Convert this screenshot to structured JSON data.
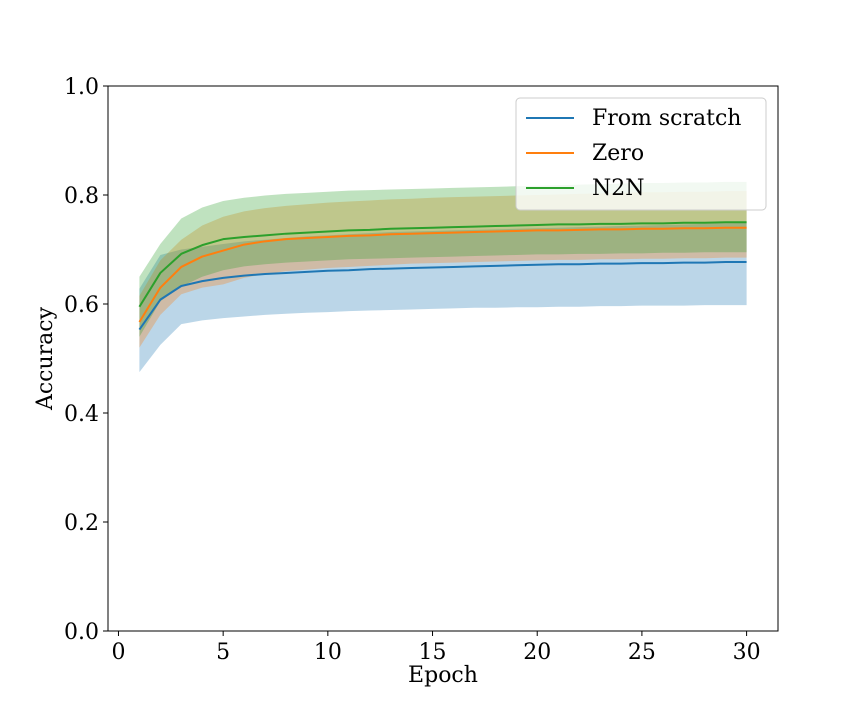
{
  "chart_data": {
    "type": "line",
    "xlabel": "Epoch",
    "ylabel": "Accuracy",
    "xlim": [
      -0.5,
      31.5
    ],
    "ylim": [
      0.0,
      1.0
    ],
    "xticks": [
      0,
      5,
      10,
      15,
      20,
      25,
      30
    ],
    "yticks": [
      0.0,
      0.2,
      0.4,
      0.6,
      0.8,
      1.0
    ],
    "xtick_labels": [
      "0",
      "5",
      "10",
      "15",
      "20",
      "25",
      "30"
    ],
    "ytick_labels": [
      "0.0",
      "0.2",
      "0.4",
      "0.6",
      "0.8",
      "1.0"
    ],
    "grid": false,
    "legend_position": "top-right",
    "x": [
      1,
      2,
      3,
      4,
      5,
      6,
      7,
      8,
      9,
      10,
      11,
      12,
      13,
      14,
      15,
      16,
      17,
      18,
      19,
      20,
      21,
      22,
      23,
      24,
      25,
      26,
      27,
      28,
      29,
      30
    ],
    "series": [
      {
        "name": "From scratch",
        "color": "#1f77b4",
        "band_opacity": 0.3,
        "values": [
          0.553,
          0.608,
          0.633,
          0.642,
          0.648,
          0.652,
          0.655,
          0.657,
          0.659,
          0.661,
          0.662,
          0.664,
          0.665,
          0.666,
          0.667,
          0.668,
          0.669,
          0.67,
          0.671,
          0.672,
          0.673,
          0.673,
          0.674,
          0.674,
          0.675,
          0.675,
          0.676,
          0.676,
          0.677,
          0.677
        ],
        "lower": [
          0.475,
          0.525,
          0.563,
          0.57,
          0.574,
          0.577,
          0.58,
          0.582,
          0.584,
          0.585,
          0.587,
          0.588,
          0.589,
          0.59,
          0.591,
          0.592,
          0.593,
          0.593,
          0.594,
          0.594,
          0.595,
          0.595,
          0.596,
          0.596,
          0.597,
          0.597,
          0.597,
          0.598,
          0.598,
          0.598
        ],
        "upper": [
          0.628,
          0.69,
          0.7,
          0.705,
          0.71,
          0.715,
          0.718,
          0.721,
          0.724,
          0.726,
          0.728,
          0.73,
          0.732,
          0.733,
          0.734,
          0.735,
          0.736,
          0.737,
          0.738,
          0.739,
          0.74,
          0.741,
          0.742,
          0.743,
          0.744,
          0.745,
          0.746,
          0.747,
          0.748,
          0.749
        ]
      },
      {
        "name": "Zero",
        "color": "#ff7f0e",
        "band_opacity": 0.3,
        "values": [
          0.567,
          0.63,
          0.668,
          0.687,
          0.698,
          0.709,
          0.715,
          0.719,
          0.721,
          0.723,
          0.725,
          0.726,
          0.728,
          0.729,
          0.73,
          0.731,
          0.732,
          0.733,
          0.734,
          0.735,
          0.735,
          0.736,
          0.737,
          0.737,
          0.738,
          0.738,
          0.739,
          0.739,
          0.74,
          0.74
        ],
        "lower": [
          0.52,
          0.58,
          0.618,
          0.63,
          0.636,
          0.648,
          0.655,
          0.66,
          0.663,
          0.666,
          0.668,
          0.67,
          0.672,
          0.674,
          0.675,
          0.676,
          0.677,
          0.678,
          0.679,
          0.68,
          0.681,
          0.681,
          0.682,
          0.682,
          0.683,
          0.683,
          0.684,
          0.684,
          0.685,
          0.685
        ],
        "upper": [
          0.615,
          0.68,
          0.718,
          0.744,
          0.76,
          0.77,
          0.776,
          0.78,
          0.783,
          0.786,
          0.788,
          0.79,
          0.792,
          0.793,
          0.795,
          0.796,
          0.797,
          0.798,
          0.799,
          0.8,
          0.801,
          0.802,
          0.803,
          0.804,
          0.805,
          0.805,
          0.806,
          0.806,
          0.807,
          0.807
        ]
      },
      {
        "name": "N2N",
        "color": "#2ca02c",
        "band_opacity": 0.3,
        "values": [
          0.595,
          0.657,
          0.692,
          0.708,
          0.719,
          0.723,
          0.726,
          0.729,
          0.731,
          0.733,
          0.735,
          0.736,
          0.738,
          0.739,
          0.74,
          0.741,
          0.742,
          0.743,
          0.744,
          0.745,
          0.746,
          0.746,
          0.747,
          0.747,
          0.748,
          0.748,
          0.749,
          0.749,
          0.75,
          0.75
        ],
        "lower": [
          0.54,
          0.605,
          0.632,
          0.65,
          0.662,
          0.669,
          0.673,
          0.676,
          0.678,
          0.68,
          0.682,
          0.683,
          0.684,
          0.685,
          0.686,
          0.687,
          0.688,
          0.689,
          0.69,
          0.691,
          0.691,
          0.692,
          0.692,
          0.693,
          0.693,
          0.694,
          0.694,
          0.695,
          0.695,
          0.695
        ],
        "upper": [
          0.65,
          0.71,
          0.757,
          0.777,
          0.789,
          0.795,
          0.799,
          0.802,
          0.804,
          0.806,
          0.808,
          0.809,
          0.81,
          0.811,
          0.812,
          0.813,
          0.814,
          0.815,
          0.816,
          0.817,
          0.818,
          0.819,
          0.82,
          0.821,
          0.822,
          0.822,
          0.823,
          0.823,
          0.824,
          0.824
        ]
      }
    ]
  }
}
